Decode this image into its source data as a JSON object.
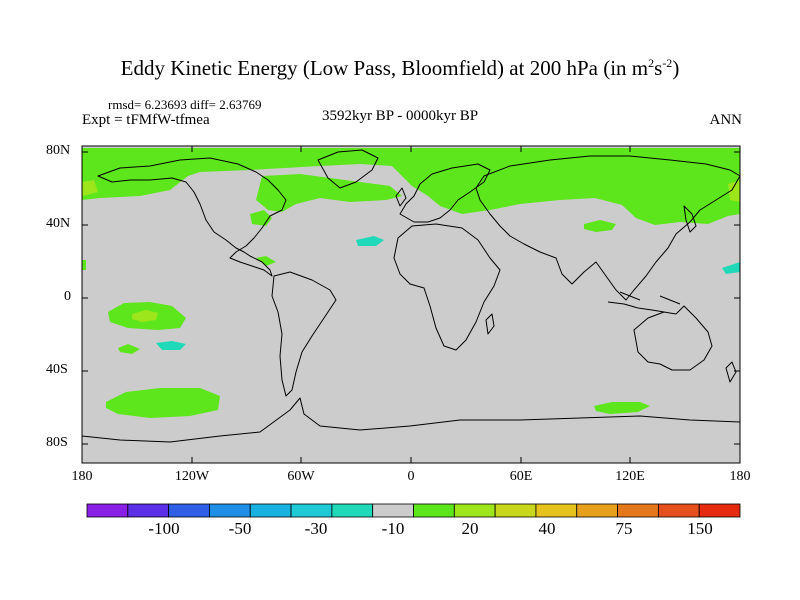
{
  "title": {
    "text": "Eddy Kinetic Energy (Low Pass, Bloomfield) at 200 hPa (in m",
    "sup1": "2",
    "mid": "s",
    "sup2": "-2",
    "close": ")"
  },
  "stats": "rmsd= 6.23693  diff= 2.63769",
  "experiment": "Expt = tFMfW-tfmea",
  "period": "3592kyr BP - 0000kyr BP",
  "season": "ANN",
  "lat_labels": [
    "80N",
    "40N",
    "0",
    "40S",
    "80S"
  ],
  "lon_labels": [
    "180",
    "120W",
    "60W",
    "0",
    "60E",
    "120E",
    "180"
  ],
  "colorbar": {
    "labels": [
      "-100",
      "-50",
      "-30",
      "-10",
      "20",
      "40",
      "75",
      "150"
    ],
    "colors": [
      "#8a1fe6",
      "#5a2fe6",
      "#2f5fe6",
      "#1f8fe6",
      "#19b1e0",
      "#1fc9d6",
      "#1fd9b8",
      "#cccccc",
      "#5ee61c",
      "#9ee61c",
      "#c8d61c",
      "#e6c21c",
      "#e6a01c",
      "#e6781c",
      "#e6501c",
      "#e62a10"
    ]
  },
  "colors": {
    "background": "#cccccc",
    "pos_low": "#5ee61c",
    "pos_mid": "#9ee61c",
    "neg_low": "#1fd9b8"
  }
}
